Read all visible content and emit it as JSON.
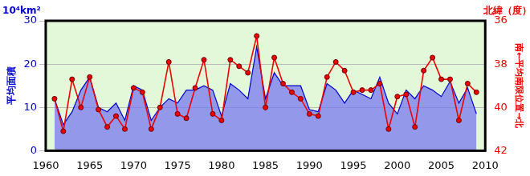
{
  "chart_data": {
    "type": "line",
    "y_label": "平均面積",
    "y2_label": "南←平均南限位置→北",
    "annotations": [
      "10⁴km²",
      "北緯（度）"
    ],
    "x": [
      1961,
      1962,
      1963,
      1964,
      1965,
      1966,
      1967,
      1968,
      1969,
      1970,
      1971,
      1972,
      1973,
      1974,
      1975,
      1976,
      1977,
      1978,
      1979,
      1980,
      1981,
      1982,
      1983,
      1984,
      1985,
      1986,
      1987,
      1988,
      1989,
      1990,
      1991,
      1992,
      1993,
      1994,
      1995,
      1996,
      1997,
      1998,
      1999,
      2000,
      2001,
      2002,
      2003,
      2004,
      2005,
      2006,
      2007,
      2008,
      2009
    ],
    "xlim": [
      1960,
      2010
    ],
    "xticks": [
      1960,
      1965,
      1970,
      1975,
      1980,
      1985,
      1990,
      1995,
      2000,
      2005,
      2010
    ],
    "ylim": [
      0,
      30
    ],
    "yticks": [
      0,
      10,
      20,
      30
    ],
    "y2lim": [
      36,
      42
    ],
    "y2ticks": [
      36,
      38,
      40,
      42
    ],
    "grid": true,
    "series": [
      {
        "name": "平均面積",
        "type": "area",
        "color": "#0000cc",
        "marker": "none",
        "values": [
          12,
          6,
          9,
          14,
          17,
          10,
          9,
          11,
          7,
          15,
          14,
          7,
          10,
          12,
          11,
          14,
          14,
          15,
          14,
          8,
          15.5,
          14,
          12,
          24,
          12,
          18,
          15,
          15,
          15,
          9.5,
          9,
          15.5,
          14,
          11,
          14,
          13,
          12,
          17,
          11,
          8.5,
          14,
          12,
          15,
          14,
          12.5,
          16,
          11,
          14.5,
          8.5
        ]
      },
      {
        "name": "平均南限位置",
        "type": "line",
        "axis": "y2",
        "color": "#ee0000",
        "marker": "circle",
        "values": [
          39.6,
          41.1,
          38.7,
          40.0,
          38.6,
          40.1,
          40.9,
          40.4,
          41.0,
          39.1,
          39.3,
          41.0,
          40.0,
          37.9,
          40.3,
          40.5,
          39.1,
          37.8,
          40.3,
          40.6,
          37.8,
          38.1,
          38.4,
          36.7,
          40.0,
          37.7,
          38.9,
          39.3,
          39.6,
          40.3,
          40.4,
          38.6,
          37.9,
          38.3,
          39.3,
          39.2,
          39.2,
          38.9,
          41.0,
          39.5,
          39.4,
          40.9,
          38.3,
          37.7,
          38.7,
          38.7,
          40.6,
          38.9,
          39.3
        ]
      }
    ]
  }
}
